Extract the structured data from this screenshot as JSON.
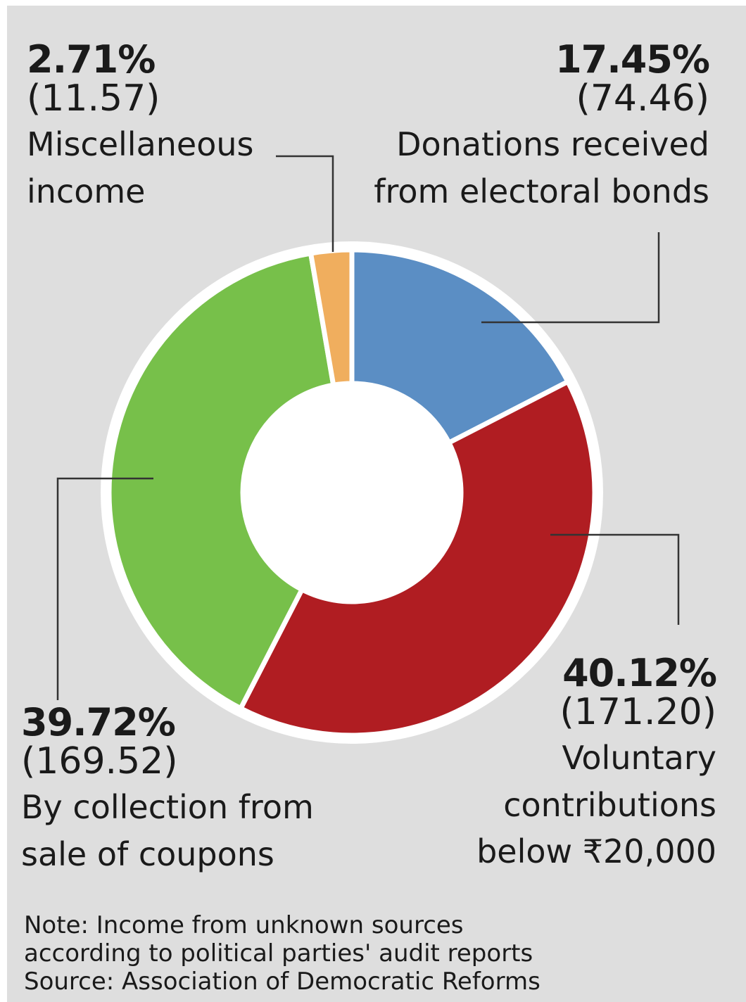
{
  "chart_data": {
    "type": "pie",
    "variant": "donut",
    "slices": [
      {
        "label": "Donations received from electoral bonds",
        "percent": 17.45,
        "value": 74.46,
        "color": "#5b8ec4"
      },
      {
        "label": "Voluntary contributions below ₹20,000",
        "percent": 40.12,
        "value": 171.2,
        "color": "#b01d22"
      },
      {
        "label": "By collection from sale of coupons",
        "percent": 39.72,
        "value": 169.52,
        "color": "#77c04a"
      },
      {
        "label": "Miscellaneous income",
        "percent": 2.71,
        "value": 11.57,
        "color": "#f0ae5e"
      }
    ]
  },
  "labels": {
    "misc": {
      "pct": "2.71%",
      "val": "(11.57)",
      "line1": "Miscellaneous",
      "line2": "income"
    },
    "bonds": {
      "pct": "17.45%",
      "val": "(74.46)",
      "line1": "Donations received",
      "line2": "from electoral bonds"
    },
    "voluntary": {
      "pct": "40.12%",
      "val": "(171.20)",
      "line1": "Voluntary",
      "line2": "contributions",
      "line3": "below ₹20,000"
    },
    "coupons": {
      "pct": "39.72%",
      "val": "(169.52)",
      "line1": "By collection from",
      "line2": "sale of coupons"
    }
  },
  "note": {
    "line1": "Note: Income from unknown sources",
    "line2": "according to political parties' audit reports",
    "line3": "Source: Association of Democratic Reforms"
  }
}
